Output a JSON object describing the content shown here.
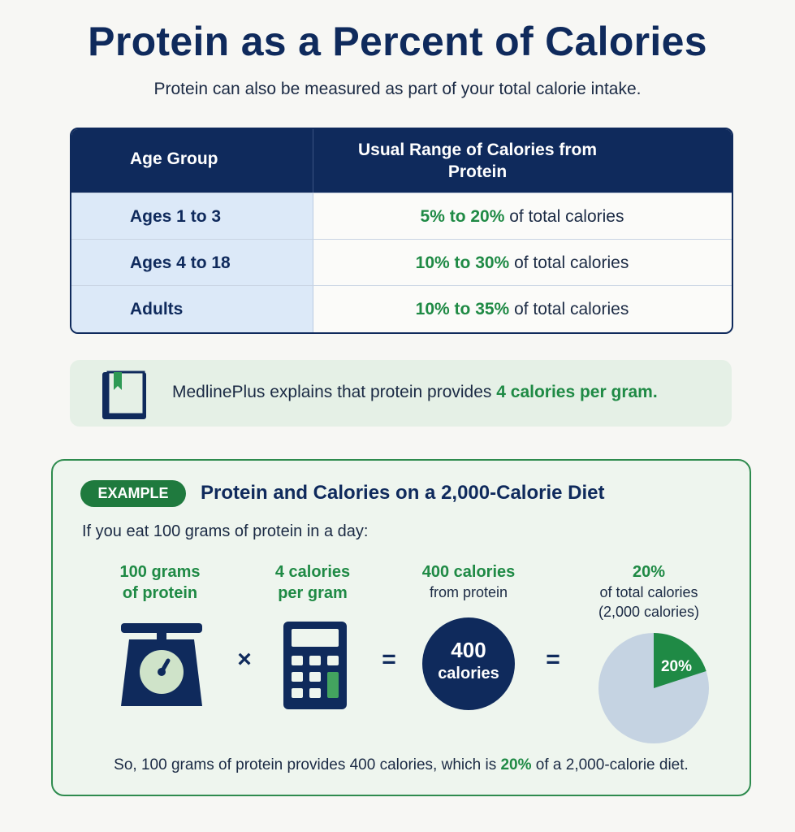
{
  "header": {
    "title": "Protein as a Percent of Calories",
    "subtitle": "Protein can also be measured as part of your total calorie intake."
  },
  "table": {
    "columns": [
      "Age Group",
      "Usual Range of Calories from Protein"
    ],
    "rows": [
      {
        "group": "Ages 1 to 3",
        "range": "5% to 20%",
        "rest": "of total calories"
      },
      {
        "group": "Ages 4 to 18",
        "range": "10% to 30%",
        "rest": "of total calories"
      },
      {
        "group": "Adults",
        "range": "10% to 35%",
        "rest": "of total calories"
      }
    ]
  },
  "note": {
    "text": "MedlinePlus explains that protein provides",
    "highlight": "4 calories per gram."
  },
  "example": {
    "badge": "EXAMPLE",
    "title": "Protein and Calories on a 2,000-Calorie Diet",
    "intro": "If you eat 100 grams of protein in a day:",
    "steps": [
      {
        "lines": [
          "100 grams",
          "of protein"
        ],
        "sub": []
      },
      {
        "lines": [
          "4 calories",
          "per gram"
        ],
        "sub": []
      },
      {
        "lines": [
          "400 calories"
        ],
        "sub": [
          "from protein"
        ]
      },
      {
        "lines": [
          "20%"
        ],
        "sub": [
          "of total calories",
          "(2,000 calories)"
        ]
      }
    ],
    "operators": [
      "×",
      "=",
      "="
    ],
    "circle": {
      "top": "400",
      "bottom": "calories"
    },
    "pie": {
      "percent": 20,
      "label": "20%"
    },
    "summary": {
      "before": "So, 100 grams of protein provides 400 calories, which is",
      "highlight": "20%",
      "after": "of a 2,000-calorie diet."
    }
  }
}
